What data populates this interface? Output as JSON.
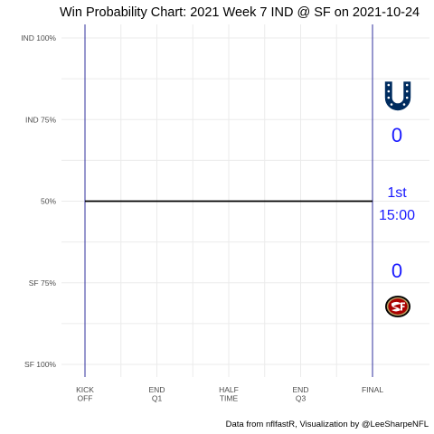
{
  "colors": {
    "grid": "#ebebeb",
    "period_line": "#00008b",
    "wp_line": "#000000",
    "annotation": "#1a1aff",
    "home_team": "#aa0000",
    "home_team_accent": "#b3995d",
    "away_team": "#002c5f"
  },
  "icons": {
    "away_logo": "horseshoe-logo",
    "home_logo": "sf-oval-logo"
  },
  "chart_data": {
    "type": "line",
    "title": "Win Probability Chart: 2021 Week 7 IND @ SF on 2021-10-24",
    "caption": "Data from nflfastR, Visualization by @LeeSharpeNFL",
    "xlabel": "",
    "ylabel": "",
    "xlim": [
      0,
      3600
    ],
    "ylim": [
      0,
      1
    ],
    "grid": true,
    "x_ticks": [
      {
        "value": 0,
        "lines": [
          "KICK",
          "OFF"
        ]
      },
      {
        "value": 900,
        "lines": [
          "END",
          "Q1"
        ]
      },
      {
        "value": 1800,
        "lines": [
          "HALF",
          "TIME"
        ]
      },
      {
        "value": 2700,
        "lines": [
          "END",
          "Q3"
        ]
      },
      {
        "value": 3600,
        "lines": [
          "FINAL"
        ]
      }
    ],
    "y_ticks": [
      {
        "value": 1.0,
        "label": "IND 100%"
      },
      {
        "value": 0.75,
        "label": "IND 75%"
      },
      {
        "value": 0.5,
        "label": "50%"
      },
      {
        "value": 0.25,
        "label": "SF 75%"
      },
      {
        "value": 0.0,
        "label": "SF 100%"
      }
    ],
    "period_lines": [
      0,
      3600
    ],
    "series": [
      {
        "x": [
          0,
          3600
        ],
        "y": [
          0.5,
          0.5
        ]
      }
    ],
    "annotations": {
      "away_score": "0",
      "home_score": "0",
      "quarter": "1st",
      "clock": "15:00"
    }
  }
}
